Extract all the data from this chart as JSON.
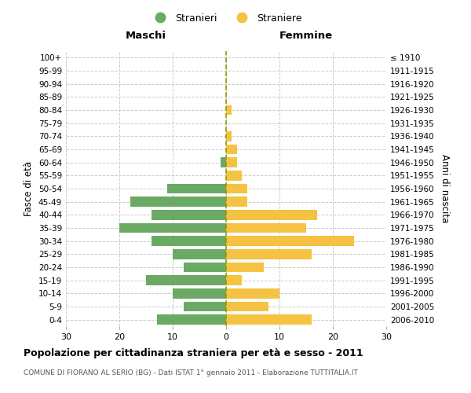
{
  "age_groups": [
    "0-4",
    "5-9",
    "10-14",
    "15-19",
    "20-24",
    "25-29",
    "30-34",
    "35-39",
    "40-44",
    "45-49",
    "50-54",
    "55-59",
    "60-64",
    "65-69",
    "70-74",
    "75-79",
    "80-84",
    "85-89",
    "90-94",
    "95-99",
    "100+"
  ],
  "birth_years": [
    "2006-2010",
    "2001-2005",
    "1996-2000",
    "1991-1995",
    "1986-1990",
    "1981-1985",
    "1976-1980",
    "1971-1975",
    "1966-1970",
    "1961-1965",
    "1956-1960",
    "1951-1955",
    "1946-1950",
    "1941-1945",
    "1936-1940",
    "1931-1935",
    "1926-1930",
    "1921-1925",
    "1916-1920",
    "1911-1915",
    "≤ 1910"
  ],
  "maschi": [
    13,
    8,
    10,
    15,
    8,
    10,
    14,
    20,
    14,
    18,
    11,
    0,
    1,
    0,
    0,
    0,
    0,
    0,
    0,
    0,
    0
  ],
  "femmine": [
    16,
    8,
    10,
    3,
    7,
    16,
    24,
    15,
    17,
    4,
    4,
    3,
    2,
    2,
    1,
    0,
    1,
    0,
    0,
    0,
    0
  ],
  "maschi_color": "#6aaa64",
  "femmine_color": "#f5c242",
  "title": "Popolazione per cittadinanza straniera per età e sesso - 2011",
  "subtitle": "COMUNE DI FIORANO AL SERIO (BG) - Dati ISTAT 1° gennaio 2011 - Elaborazione TUTTITALIA.IT",
  "xlabel_left": "Maschi",
  "xlabel_right": "Femmine",
  "ylabel_left": "Fasce di età",
  "ylabel_right": "Anni di nascita",
  "legend_maschi": "Stranieri",
  "legend_femmine": "Straniere",
  "xlim": 30,
  "background_color": "#ffffff",
  "grid_color": "#cccccc"
}
